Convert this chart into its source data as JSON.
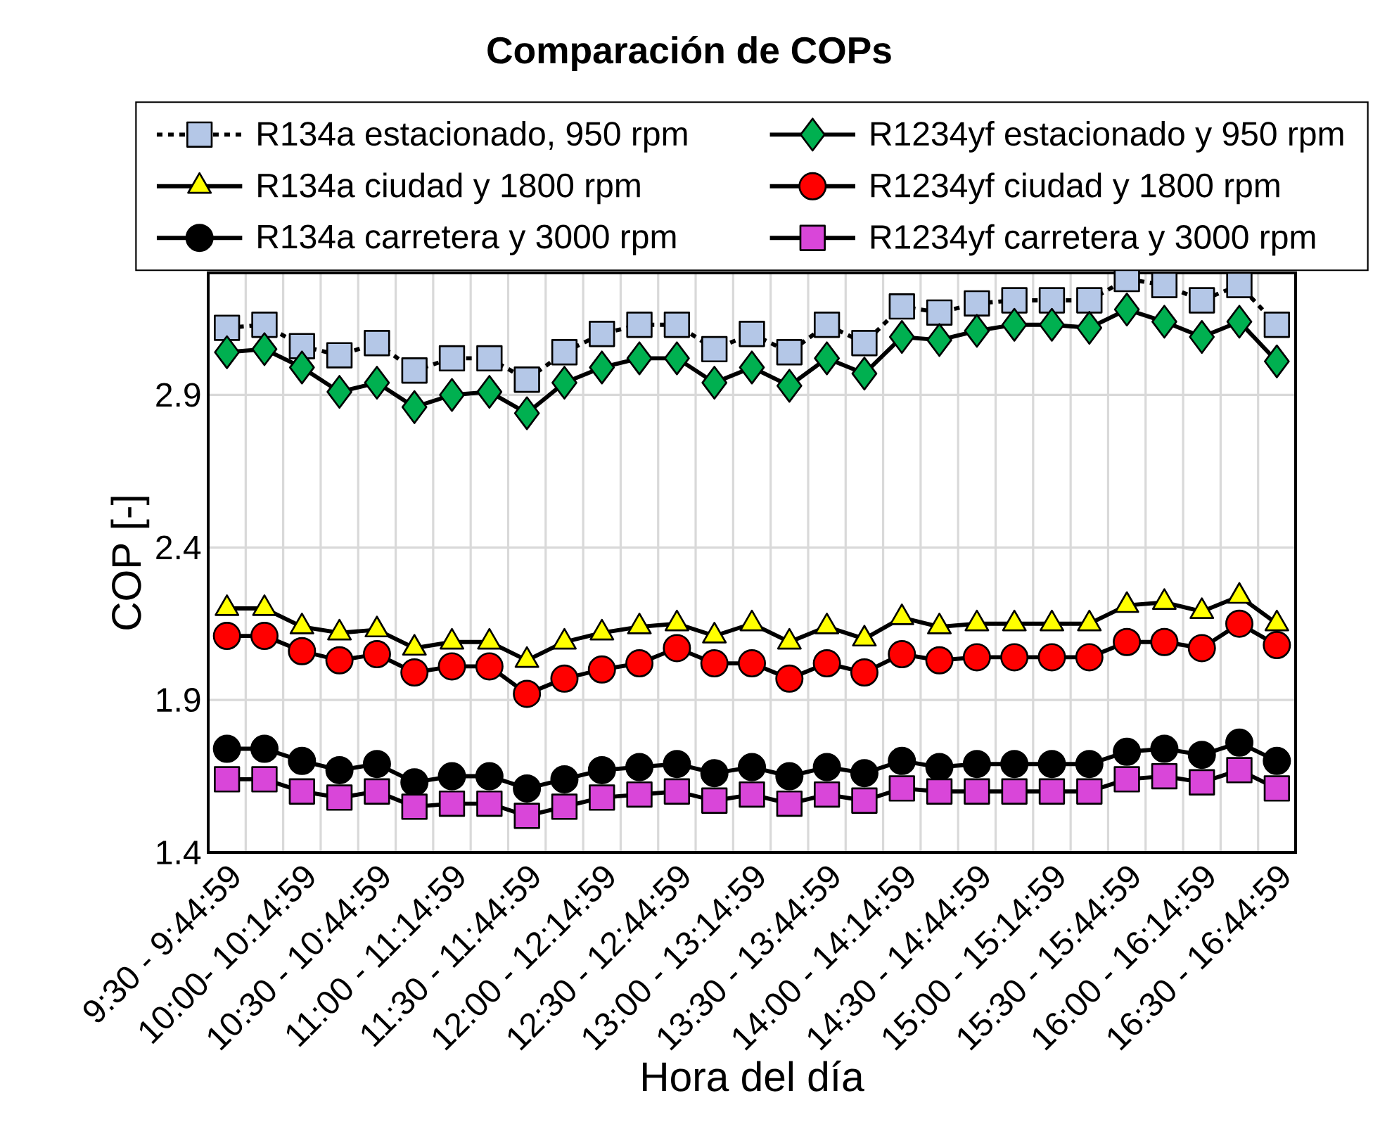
{
  "chart_data": {
    "type": "line",
    "title": "Comparación de COPs",
    "xlabel": "Hora del día",
    "ylabel": "COP [-]",
    "categories": [
      "9:30 - 9:44:59",
      null,
      "10:00- 10:14:59",
      null,
      "10:30 - 10:44:59",
      null,
      "11:00 - 11:14:59",
      null,
      "11:30 - 11:44:59",
      null,
      "12:00 - 12:14:59",
      null,
      "12:30 - 12:44:59",
      null,
      "13:00 - 13:14:59",
      null,
      "13:30 - 13:44:59",
      null,
      "14:00 - 14:14:59",
      null,
      "14:30 - 14:44:59",
      null,
      "15:00 - 15:14:59",
      null,
      "15:30 - 15:44:59",
      null,
      "16:00 - 16:14:59",
      null,
      "16:30 - 16:44:59"
    ],
    "series": [
      {
        "name": "R134a estacionado, 950 rpm",
        "color": "#b4c7e7",
        "marker": "square",
        "line_style": "dashed",
        "values": [
          3.12,
          3.13,
          3.06,
          3.03,
          3.07,
          2.98,
          3.02,
          3.02,
          2.95,
          3.04,
          3.1,
          3.13,
          3.13,
          3.05,
          3.1,
          3.04,
          3.13,
          3.07,
          3.19,
          3.17,
          3.2,
          3.21,
          3.21,
          3.21,
          3.28,
          3.26,
          3.21,
          3.26,
          3.13
        ]
      },
      {
        "name": "R1234yf estacionado y 950 rpm",
        "color": "#00b050",
        "marker": "diamond",
        "line_style": "solid",
        "values": [
          3.04,
          3.05,
          2.99,
          2.91,
          2.94,
          2.86,
          2.9,
          2.91,
          2.84,
          2.94,
          2.99,
          3.02,
          3.02,
          2.94,
          2.99,
          2.93,
          3.02,
          2.97,
          3.09,
          3.08,
          3.11,
          3.13,
          3.13,
          3.12,
          3.18,
          3.14,
          3.09,
          3.14,
          3.01
        ]
      },
      {
        "name": "R134a ciudad y 1800 rpm",
        "color": "#ffff00",
        "marker": "triangle",
        "line_style": "solid",
        "values": [
          2.2,
          2.2,
          2.14,
          2.12,
          2.13,
          2.07,
          2.09,
          2.09,
          2.03,
          2.09,
          2.12,
          2.14,
          2.15,
          2.11,
          2.15,
          2.09,
          2.14,
          2.1,
          2.17,
          2.14,
          2.15,
          2.15,
          2.15,
          2.15,
          2.21,
          2.22,
          2.19,
          2.24,
          2.15
        ]
      },
      {
        "name": "R1234yf ciudad y 1800 rpm",
        "color": "#ff0000",
        "marker": "circle",
        "line_style": "solid",
        "values": [
          2.11,
          2.11,
          2.06,
          2.03,
          2.05,
          1.99,
          2.01,
          2.01,
          1.92,
          1.97,
          2.0,
          2.02,
          2.07,
          2.02,
          2.02,
          1.97,
          2.02,
          1.99,
          2.05,
          2.03,
          2.04,
          2.04,
          2.04,
          2.04,
          2.09,
          2.09,
          2.07,
          2.15,
          2.08
        ]
      },
      {
        "name": "R134a carretera y 3000 rpm",
        "color": "#000000",
        "marker": "circle",
        "line_style": "solid",
        "values": [
          1.74,
          1.74,
          1.7,
          1.67,
          1.69,
          1.63,
          1.65,
          1.65,
          1.61,
          1.64,
          1.67,
          1.68,
          1.69,
          1.66,
          1.68,
          1.65,
          1.68,
          1.66,
          1.7,
          1.68,
          1.69,
          1.69,
          1.69,
          1.69,
          1.73,
          1.74,
          1.72,
          1.76,
          1.7
        ]
      },
      {
        "name": "R1234yf carretera y 3000 rpm",
        "color": "#d946d9",
        "marker": "square",
        "line_style": "solid",
        "values": [
          1.64,
          1.64,
          1.6,
          1.58,
          1.6,
          1.55,
          1.56,
          1.56,
          1.52,
          1.55,
          1.58,
          1.59,
          1.6,
          1.57,
          1.59,
          1.56,
          1.59,
          1.57,
          1.61,
          1.6,
          1.6,
          1.6,
          1.6,
          1.6,
          1.64,
          1.65,
          1.63,
          1.67,
          1.61
        ]
      }
    ],
    "ylim": [
      1.4,
      3.3
    ],
    "yticks": [
      1.4,
      1.9,
      2.4,
      2.9
    ],
    "grid": true,
    "legend": "top"
  }
}
